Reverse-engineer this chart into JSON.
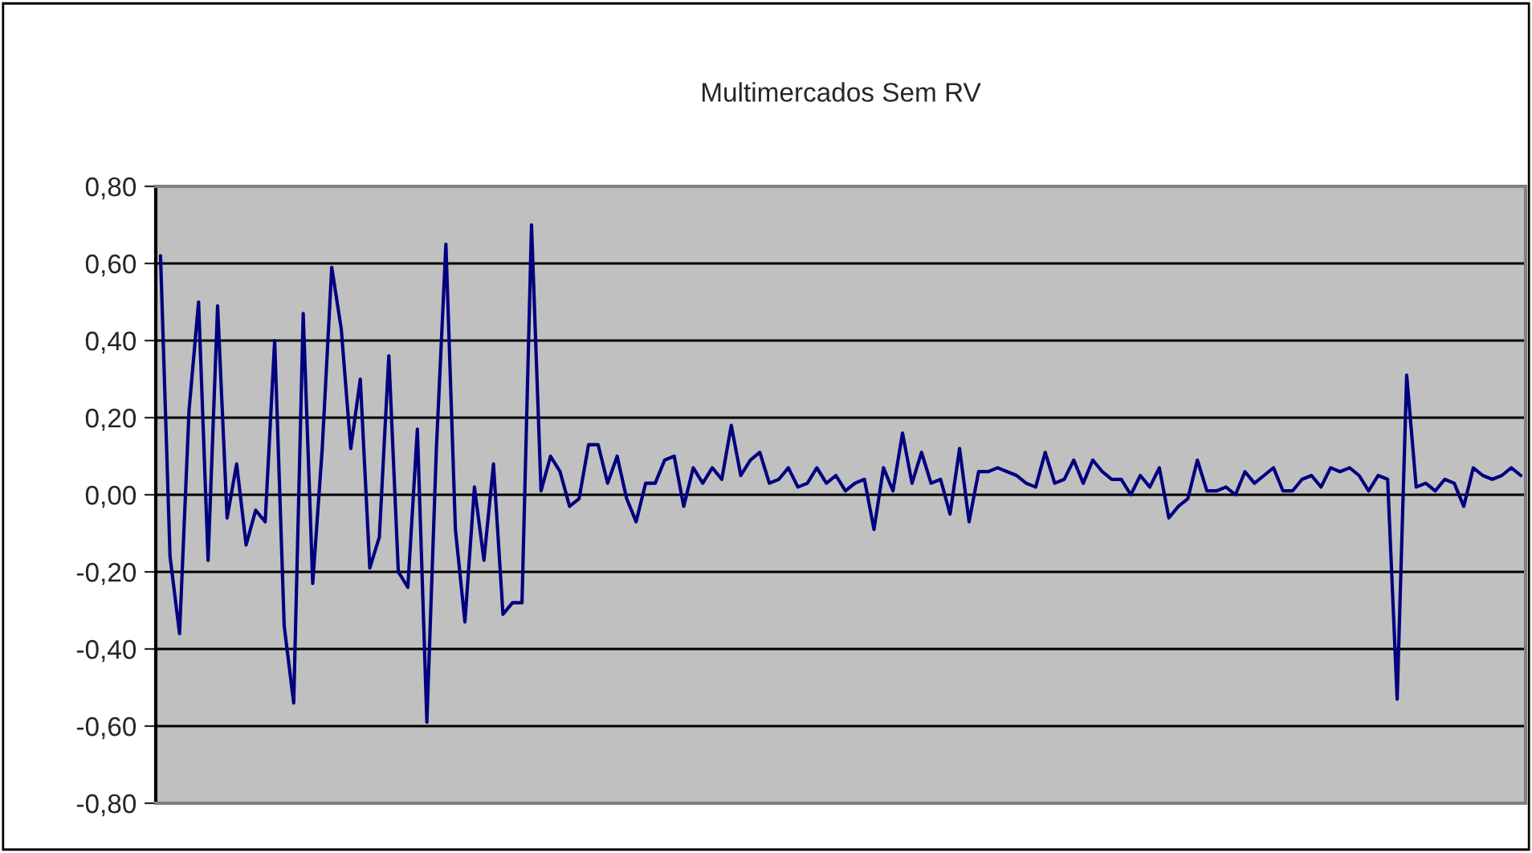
{
  "chart_data": {
    "type": "line",
    "title": "Multimercados Sem RV",
    "categories": [
      null,
      null,
      null,
      null,
      null,
      null,
      null,
      null,
      null,
      null,
      null,
      null,
      null,
      null,
      null,
      null,
      null,
      null,
      null,
      null,
      null,
      null,
      null,
      null,
      null,
      null,
      null,
      null,
      null,
      null,
      null,
      null,
      null,
      null,
      null,
      null,
      null,
      null,
      null,
      null,
      null,
      null,
      null,
      null,
      null,
      null,
      null,
      null,
      null,
      null,
      null,
      null,
      null,
      null,
      null,
      null,
      null,
      null,
      null,
      null,
      null,
      null,
      null,
      null,
      null,
      null,
      null,
      null,
      null,
      null,
      null,
      null,
      null,
      null,
      null,
      null,
      null,
      null,
      null,
      null,
      null,
      null,
      null,
      null,
      null,
      null,
      null,
      null,
      null,
      null,
      null,
      null,
      null,
      null,
      null,
      null,
      null,
      null,
      null,
      null,
      null,
      null,
      null,
      null,
      null,
      null,
      null,
      null,
      null,
      null,
      null,
      null,
      null,
      null,
      null,
      null,
      null,
      null,
      null,
      null,
      null,
      null,
      null,
      null,
      null,
      null,
      null,
      null,
      null,
      null,
      null,
      null,
      null,
      null,
      null,
      null,
      null,
      null,
      null,
      null,
      null,
      null,
      null,
      null
    ],
    "series": [
      {
        "color": "#000080",
        "values": [
          0.62,
          -0.16,
          -0.36,
          0.22,
          0.5,
          -0.17,
          0.49,
          -0.06,
          0.08,
          -0.13,
          -0.04,
          -0.07,
          0.4,
          -0.34,
          -0.54,
          0.47,
          -0.23,
          0.12,
          0.59,
          0.43,
          0.12,
          0.3,
          -0.19,
          -0.11,
          0.36,
          -0.2,
          -0.24,
          0.17,
          -0.59,
          0.12,
          0.65,
          -0.09,
          -0.33,
          0.02,
          -0.17,
          0.08,
          -0.31,
          -0.28,
          -0.28,
          0.7,
          0.01,
          0.1,
          0.06,
          -0.03,
          -0.01,
          0.13,
          0.13,
          0.03,
          0.1,
          -0.01,
          -0.07,
          0.03,
          0.03,
          0.09,
          0.1,
          -0.03,
          0.07,
          0.03,
          0.07,
          0.04,
          0.18,
          0.05,
          0.09,
          0.11,
          0.03,
          0.04,
          0.07,
          0.02,
          0.03,
          0.07,
          0.03,
          0.05,
          0.01,
          0.03,
          0.04,
          -0.09,
          0.07,
          0.01,
          0.16,
          0.03,
          0.11,
          0.03,
          0.04,
          -0.05,
          0.12,
          -0.07,
          0.06,
          0.06,
          0.07,
          0.06,
          0.05,
          0.03,
          0.02,
          0.11,
          0.03,
          0.04,
          0.09,
          0.03,
          0.09,
          0.06,
          0.04,
          0.04,
          0.0,
          0.05,
          0.02,
          0.07,
          -0.06,
          -0.03,
          -0.01,
          0.09,
          0.01,
          0.01,
          0.02,
          0.0,
          0.06,
          0.03,
          0.05,
          0.07,
          0.01,
          0.01,
          0.04,
          0.05,
          0.02,
          0.07,
          0.06,
          0.07,
          0.05,
          0.01,
          0.05,
          0.04,
          -0.53,
          0.31,
          0.02,
          0.03,
          0.01,
          0.04,
          0.03,
          -0.03,
          0.07,
          0.05,
          0.04,
          0.05,
          0.07,
          0.05
        ]
      }
    ],
    "ylim": [
      -0.8,
      0.8
    ],
    "yticks": [
      {
        "value": -0.8,
        "label": "-0,80"
      },
      {
        "value": -0.6,
        "label": "-0,60"
      },
      {
        "value": -0.4,
        "label": "-0,40"
      },
      {
        "value": -0.2,
        "label": "-0,20"
      },
      {
        "value": 0,
        "label": "0,00"
      },
      {
        "value": 0.2,
        "label": "0,20"
      },
      {
        "value": 0.4,
        "label": "0,40"
      },
      {
        "value": 0.6,
        "label": "0,60"
      },
      {
        "value": 0.8,
        "label": "0,80"
      }
    ],
    "grid": "y",
    "marker": "none",
    "line_style": "solid",
    "tick_labels": "y"
  }
}
